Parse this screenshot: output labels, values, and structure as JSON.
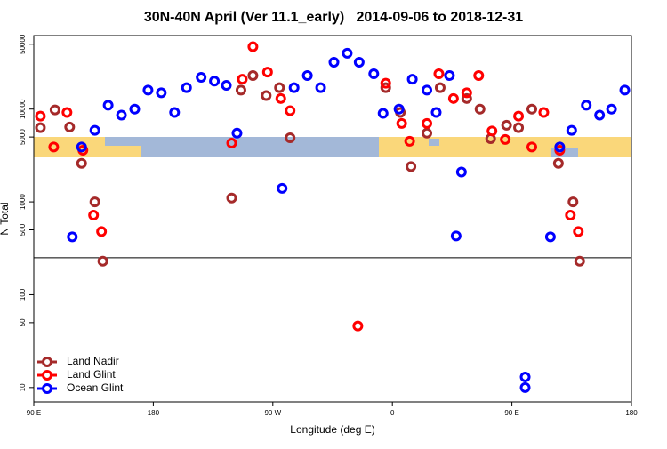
{
  "chart_data": {
    "type": "scatter",
    "title": "30N-40N April (Ver 11.1_early)   2014-09-06 to 2018-12-31",
    "x_label": "Longitude (deg E)",
    "y_label": "N Total",
    "xlim": [
      90,
      540
    ],
    "xticks": [
      {
        "value": 90,
        "label": "90 E"
      },
      {
        "value": 180,
        "label": "180"
      },
      {
        "value": 270,
        "label": "90 W"
      },
      {
        "value": 360,
        "label": "0"
      },
      {
        "value": 450,
        "label": "90 E"
      },
      {
        "value": 540,
        "label": "180"
      }
    ],
    "ylim": [
      7,
      62000
    ],
    "log_y": true,
    "yticks": [
      10,
      50,
      100,
      500,
      1000,
      5000,
      10000,
      50000
    ],
    "hline": 250,
    "legend_position": "bottom-left",
    "series": [
      {
        "name": "Land Nadir",
        "color": "#a52a2a",
        "x": [
          95,
          106,
          117,
          126,
          136,
          142,
          239,
          246,
          255,
          265,
          275,
          283,
          355,
          366,
          374,
          386,
          396,
          416,
          426,
          434,
          446,
          455,
          465,
          485,
          496,
          501
        ],
        "values": [
          6300,
          9800,
          6400,
          2600,
          1000,
          230,
          1100,
          16000,
          23000,
          14000,
          17000,
          4900,
          17000,
          9200,
          2400,
          5500,
          17000,
          13000,
          10000,
          4800,
          6700,
          6300,
          10000,
          2600,
          1000,
          230
        ]
      },
      {
        "name": "Land Glint",
        "color": "#ff0000",
        "x": [
          95,
          105,
          115,
          127,
          135,
          141,
          239,
          247,
          255,
          266,
          276,
          283,
          334,
          355,
          367,
          373,
          386,
          395,
          406,
          416,
          425,
          435,
          445,
          455,
          465,
          474,
          486,
          494,
          500
        ],
        "values": [
          8400,
          3900,
          9200,
          3600,
          720,
          480,
          4300,
          21000,
          47000,
          25000,
          13000,
          9600,
          46,
          19000,
          7000,
          4500,
          7000,
          24000,
          13000,
          15000,
          23000,
          5800,
          4700,
          8400,
          3900,
          9200,
          3600,
          720,
          480
        ]
      },
      {
        "name": "Ocean Glint",
        "color": "#0000ff",
        "x": [
          119,
          126,
          136,
          146,
          156,
          166,
          176,
          186,
          196,
          205,
          216,
          226,
          235,
          243,
          277,
          286,
          296,
          306,
          316,
          326,
          335,
          346,
          353,
          365,
          375,
          386,
          393,
          403,
          408,
          412,
          460,
          460,
          479,
          486,
          495,
          506,
          516,
          525,
          535
        ],
        "values": [
          420,
          3900,
          5900,
          11000,
          8600,
          10000,
          16000,
          15000,
          9200,
          17000,
          22000,
          20000,
          18000,
          5500,
          1400,
          17000,
          23000,
          17000,
          32000,
          40000,
          32000,
          24000,
          9000,
          10000,
          21000,
          16000,
          9200,
          23000,
          430,
          2100,
          13,
          10,
          420,
          3900,
          5900,
          11000,
          8600,
          10000,
          16000
        ]
      }
    ]
  }
}
